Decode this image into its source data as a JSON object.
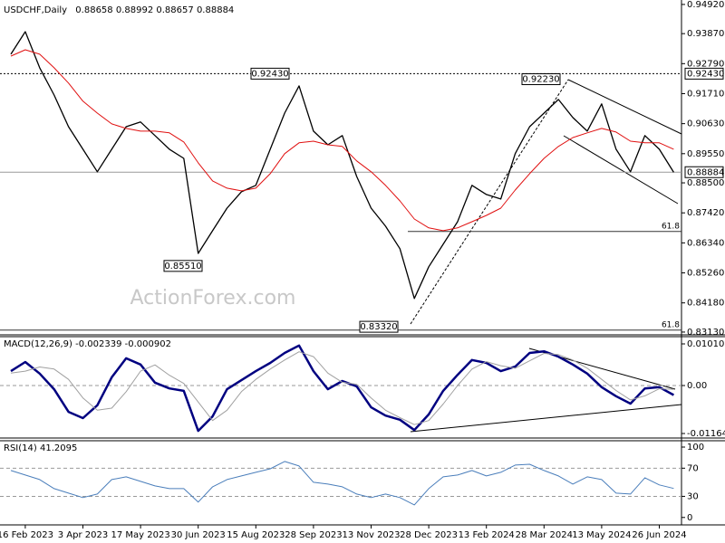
{
  "chart_data": [
    {
      "type": "line",
      "title": "USDCHF,Daily",
      "last_ohlc": [
        0.88658,
        0.88992,
        0.88657,
        0.88884
      ],
      "categories": [
        null,
        "16 Feb 2023",
        null,
        null,
        null,
        "3 Apr 2023",
        null,
        null,
        null,
        "17 May 2023",
        null,
        null,
        null,
        "30 Jun 2023",
        null,
        null,
        null,
        "15 Aug 2023",
        null,
        null,
        null,
        "28 Sep 2023",
        null,
        null,
        null,
        "13 Nov 2023",
        null,
        null,
        null,
        "28 Dec 2023",
        null,
        null,
        null,
        "13 Feb 2024",
        null,
        null,
        null,
        "28 Mar 2024",
        null,
        null,
        null,
        "13 May 2024",
        null,
        null,
        null,
        "26 Jun 2024",
        null
      ],
      "series": [
        {
          "color": "#000000",
          "values": [
            0.9313,
            0.9394,
            0.9264,
            0.9166,
            0.9052,
            0.8971,
            0.889,
            0.8971,
            0.9052,
            0.9069,
            0.902,
            0.8971,
            0.8938,
            0.8596,
            0.8678,
            0.8759,
            0.8818,
            0.8841,
            0.8971,
            0.9101,
            0.9199,
            0.9036,
            0.8987,
            0.902,
            0.8873,
            0.8759,
            0.8694,
            0.8613,
            0.8434,
            0.8548,
            0.8629,
            0.871,
            0.8841,
            0.8808,
            0.8792,
            0.8955,
            0.9052,
            0.9101,
            0.915,
            0.9085,
            0.9036,
            0.9134,
            0.8971,
            0.889,
            0.902,
            0.8971,
            0.8888
          ]
        },
        {
          "color": "#e01010",
          "values": [
            0.9306,
            0.9329,
            0.9313,
            0.9264,
            0.9209,
            0.9144,
            0.9101,
            0.9062,
            0.9046,
            0.9036,
            0.9036,
            0.903,
            0.8997,
            0.8922,
            0.8857,
            0.8831,
            0.8821,
            0.8831,
            0.8883,
            0.8955,
            0.8994,
            0.9,
            0.8987,
            0.8981,
            0.8929,
            0.889,
            0.8841,
            0.8785,
            0.872,
            0.8688,
            0.8678,
            0.8688,
            0.871,
            0.8733,
            0.8759,
            0.8824,
            0.8883,
            0.8938,
            0.8981,
            0.9013,
            0.903,
            0.9046,
            0.9033,
            0.9,
            0.8994,
            0.8994,
            0.8971
          ]
        }
      ],
      "ylim": [
        0.8303,
        0.9508
      ],
      "yticks": [
        {
          "value": 0.9492,
          "label": "0.94920"
        },
        {
          "value": 0.9387,
          "label": "0.93870"
        },
        {
          "value": 0.9279,
          "label": "0.92790"
        },
        {
          "value": 0.9171,
          "label": "0.91710"
        },
        {
          "value": 0.9063,
          "label": "0.90630"
        },
        {
          "value": 0.8955,
          "label": "0.89550"
        },
        {
          "value": 0.885,
          "label": "0.88500"
        },
        {
          "value": 0.8742,
          "label": "0.87420"
        },
        {
          "value": 0.8634,
          "label": "0.86340"
        },
        {
          "value": 0.8526,
          "label": "0.85260"
        },
        {
          "value": 0.8418,
          "label": "0.84180"
        },
        {
          "value": 0.8313,
          "label": "0.83130"
        }
      ],
      "resistance": {
        "value": 0.9243,
        "label": "0.92430"
      },
      "annotations": [
        {
          "value": 0.9243,
          "label": "0.92430"
        },
        {
          "value": 0.9223,
          "label": "0.92230"
        },
        {
          "value": 0.8551,
          "label": "0.85510"
        },
        {
          "value": 0.8332,
          "label": "0.83320"
        }
      ],
      "retracements": [
        {
          "level": 61.8,
          "price": 0.8675
        },
        {
          "level": 61.8,
          "price": 0.832
        }
      ],
      "watermark": "ActionForex.com"
    },
    {
      "type": "line",
      "title": "MACD(12,26,9)",
      "readout": [
        -0.002339,
        -0.000902
      ],
      "series": [
        {
          "color": "#000080",
          "values": [
            0.0035,
            0.0057,
            0.0029,
            -0.0009,
            -0.0064,
            -0.0079,
            -0.0048,
            0.002,
            0.0066,
            0.0051,
            0.0007,
            -0.0007,
            -0.0013,
            -0.011,
            -0.0075,
            -0.0009,
            0.0013,
            0.0035,
            0.0055,
            0.0079,
            0.0097,
            0.0035,
            -0.0009,
            0.0011,
            -0.0002,
            -0.0053,
            -0.0073,
            -0.0083,
            -0.0108,
            -0.007,
            -0.0013,
            0.0026,
            0.0062,
            0.0055,
            0.0035,
            0.0046,
            0.0079,
            0.0083,
            0.007,
            0.0051,
            0.0029,
            -0.0004,
            -0.0026,
            -0.0044,
            -0.0007,
            -0.0004,
            -0.0023
          ]
        },
        {
          "color": "#a0a0a0",
          "values": [
            0.003,
            0.0035,
            0.0045,
            0.004,
            0.0015,
            -0.003,
            -0.006,
            -0.0055,
            -0.0015,
            0.0035,
            0.005,
            0.0025,
            0.0005,
            -0.004,
            -0.0085,
            -0.006,
            -0.0015,
            0.0015,
            0.004,
            0.0062,
            0.0082,
            0.007,
            0.003,
            0.0008,
            0.0003,
            -0.003,
            -0.006,
            -0.0078,
            -0.0095,
            -0.0085,
            -0.0045,
            0.0,
            0.004,
            0.0058,
            0.0048,
            0.0042,
            0.006,
            0.0078,
            0.0075,
            0.0062,
            0.0042,
            0.0015,
            -0.0012,
            -0.0035,
            -0.0025,
            -0.0008,
            -0.0009
          ]
        }
      ],
      "ylim": [
        -0.01274,
        0.01164
      ],
      "yticks": [
        0.010101,
        {
          "value": 0,
          "label": "0.00"
        },
        -0.011645
      ],
      "dashed_levels": [
        0
      ]
    },
    {
      "type": "line",
      "title": "RSI(14)",
      "readout": 41.2095,
      "series": [
        {
          "color": "#4a7ebb",
          "values": [
            66.7,
            60.3,
            53.8,
            41.0,
            34.6,
            28.2,
            33.3,
            53.8,
            57.7,
            51.3,
            44.9,
            41.0,
            41.0,
            21.8,
            43.6,
            53.8,
            59.0,
            64.1,
            69.2,
            79.5,
            73.1,
            50.0,
            47.4,
            43.6,
            33.3,
            28.2,
            33.3,
            28.2,
            17.9,
            41.0,
            57.7,
            60.3,
            66.7,
            59.0,
            64.1,
            74.4,
            75.6,
            66.7,
            59.0,
            47.4,
            57.7,
            53.8,
            34.6,
            33.3,
            56.4,
            46.2,
            41.2
          ]
        }
      ],
      "ylim": [
        -8,
        109
      ],
      "yticks": [
        100,
        70,
        30,
        0
      ],
      "dashed_levels": [
        70,
        30
      ]
    }
  ]
}
